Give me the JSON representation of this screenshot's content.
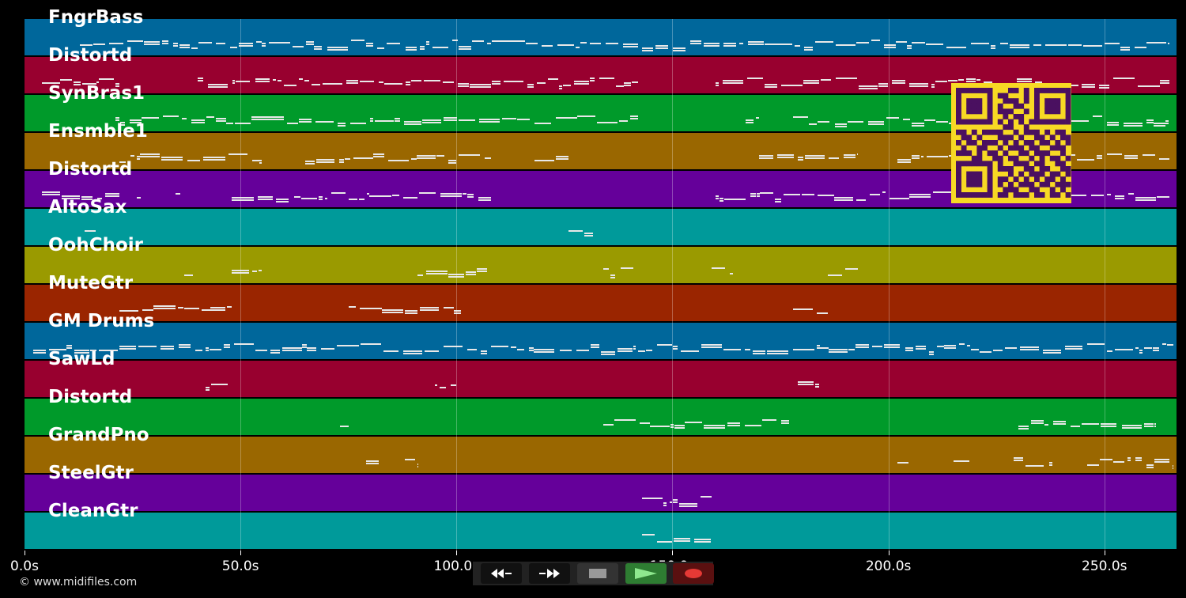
{
  "tracks": [
    {
      "name": "FngrBass",
      "color": "#00679b"
    },
    {
      "name": "Distortd",
      "color": "#98002f"
    },
    {
      "name": "SynBras1",
      "color": "#009a2a"
    },
    {
      "name": "Ensmble1",
      "color": "#9a6700"
    },
    {
      "name": "Distortd",
      "color": "#65009a"
    },
    {
      "name": "AltoSax",
      "color": "#009a9a"
    },
    {
      "name": "OohChoir",
      "color": "#9a9a00"
    },
    {
      "name": "MuteGtr",
      "color": "#9a2500"
    },
    {
      "name": "GM Drums",
      "color": "#00679b"
    },
    {
      "name": "SawLd",
      "color": "#98002f"
    },
    {
      "name": "Distortd",
      "color": "#009a2a"
    },
    {
      "name": "GrandPno",
      "color": "#9a6700"
    },
    {
      "name": "SteelGtr",
      "color": "#65009a"
    },
    {
      "name": "CleanGtr",
      "color": "#009a9a"
    }
  ],
  "time_axis": {
    "max_seconds": 266.7,
    "ticks": [
      {
        "value": 0,
        "label": "0.0s"
      },
      {
        "value": 50,
        "label": "50.0s"
      },
      {
        "value": 100,
        "label": "100.0s"
      },
      {
        "value": 150,
        "label": "150.0s"
      },
      {
        "value": 200,
        "label": "200.0s"
      },
      {
        "value": 250,
        "label": "250.0s"
      }
    ]
  },
  "note_regions": [
    [
      [
        12.9,
        265
      ]
    ],
    [
      [
        4,
        22
      ],
      [
        40,
        142
      ],
      [
        160,
        265
      ]
    ],
    [
      [
        21,
        142
      ],
      [
        167,
        170
      ],
      [
        178,
        265
      ]
    ],
    [
      [
        22,
        55
      ],
      [
        65,
        108
      ],
      [
        118,
        126
      ],
      [
        170,
        193
      ],
      [
        202,
        265
      ]
    ],
    [
      [
        4,
        22
      ],
      [
        26,
        27
      ],
      [
        35,
        36
      ],
      [
        48,
        108
      ],
      [
        160,
        265
      ]
    ],
    [
      [
        14,
        17
      ],
      [
        126,
        132
      ]
    ],
    [
      [
        37,
        39
      ],
      [
        48,
        55
      ],
      [
        91,
        107
      ],
      [
        134,
        141
      ],
      [
        159,
        164
      ],
      [
        186,
        193
      ]
    ],
    [
      [
        22,
        48
      ],
      [
        75,
        101
      ],
      [
        178,
        186
      ]
    ],
    [
      [
        2,
        266
      ]
    ],
    [
      [
        42,
        47
      ],
      [
        95,
        100
      ],
      [
        179,
        184
      ]
    ],
    [
      [
        73,
        75
      ],
      [
        134,
        177
      ],
      [
        230,
        262
      ]
    ],
    [
      [
        79,
        82
      ],
      [
        88,
        91
      ],
      [
        202,
        205
      ],
      [
        215,
        219
      ],
      [
        229,
        238
      ],
      [
        246,
        266
      ]
    ],
    [
      [
        143,
        159
      ]
    ],
    [
      [
        143,
        159
      ]
    ]
  ],
  "qr_modules": [
    "1111111000110101111111",
    "1000001011000101000001",
    "1011101001110101011101",
    "1011101010011001011101",
    "1011101011100101011101",
    "1000001001011001000001",
    "1111111010101011111111",
    "0000000001100100000000",
    "1101011110010111010110",
    "0110100011101001101011",
    "1011011101010110110101",
    "0100110010111011001110",
    "1110101101001101110010",
    "0001100110110010101101",
    "1111111010011101100110",
    "1000001011100110110011",
    "1011101000101011101101",
    "1011101011010101011010",
    "1011101010101110110111",
    "1000001001110011001010",
    "1111111011011101101101"
  ],
  "copyright": "© www.midifiles.com",
  "transport": {
    "rewind": "rewind-icon",
    "fast_forward": "fast-forward-icon",
    "stop": "stop-icon",
    "play": "play-icon",
    "record": "record-icon",
    "play_color": "#2e7d32",
    "record_color": "#e53935"
  }
}
